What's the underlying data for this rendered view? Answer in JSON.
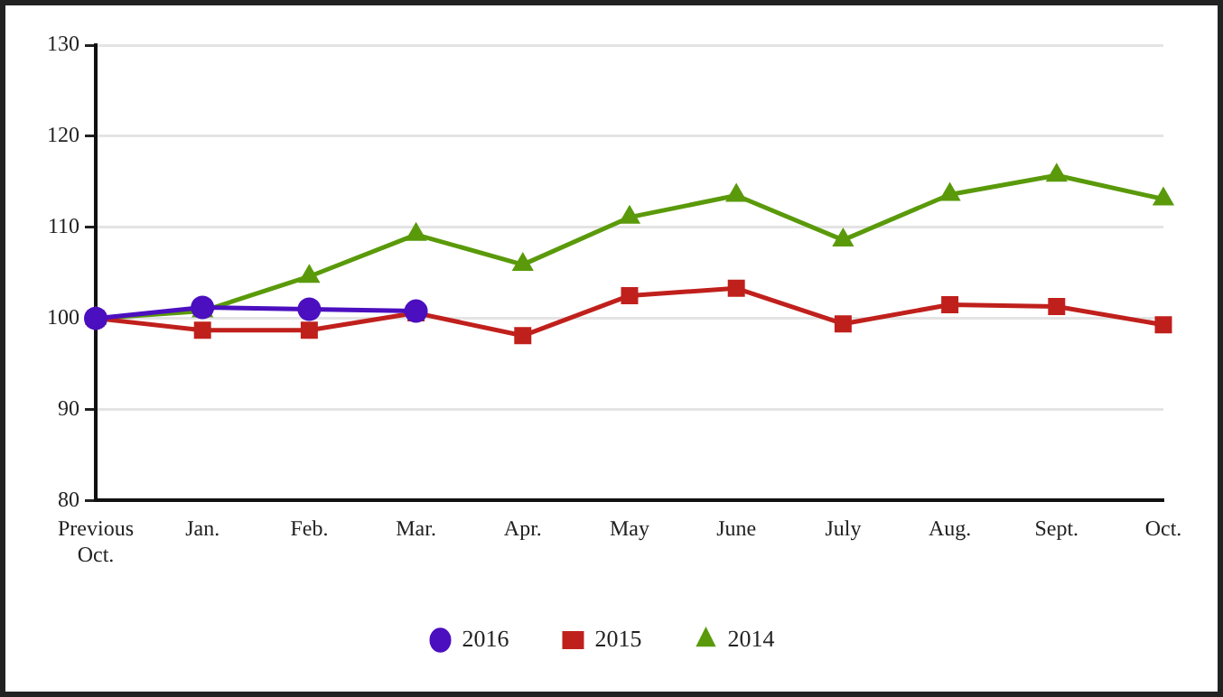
{
  "chart_data": {
    "type": "line",
    "categories": [
      "Previous Oct.",
      "Jan.",
      "Feb.",
      "Mar.",
      "Apr.",
      "May",
      "June",
      "July",
      "Aug.",
      "Sept.",
      "Oct."
    ],
    "series": [
      {
        "name": "2016",
        "color": "#4b0fbf",
        "marker": "circle",
        "values": [
          100,
          101.2,
          101,
          100.8,
          null,
          null,
          null,
          null,
          null,
          null,
          null
        ]
      },
      {
        "name": "2015",
        "color": "#c0201c",
        "marker": "square",
        "values": [
          100,
          98.7,
          98.7,
          100.6,
          98.1,
          102.5,
          103.3,
          99.4,
          101.5,
          101.3,
          99.3
        ]
      },
      {
        "name": "2014",
        "color": "#5a9a0a",
        "marker": "triangle",
        "values": [
          100,
          100.8,
          104.6,
          109.2,
          105.9,
          111.1,
          113.5,
          108.6,
          113.6,
          115.7,
          113.1
        ]
      }
    ],
    "ylim": [
      80,
      130
    ],
    "yticks": [
      80,
      90,
      100,
      110,
      120,
      130
    ],
    "grid": "y",
    "legend": "bottom",
    "line_style": "solid"
  }
}
